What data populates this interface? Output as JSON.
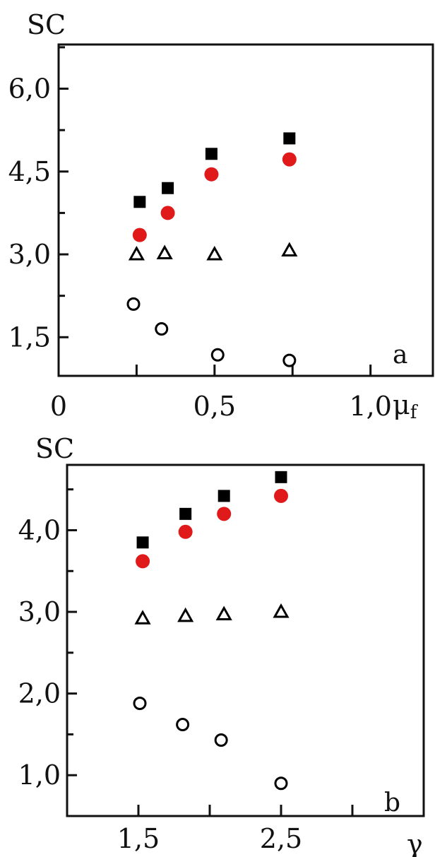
{
  "chart_data": [
    {
      "type": "scatter",
      "panel_label": "a",
      "ylabel": "SC",
      "xlabel": "μf",
      "xlabel_main": "μ",
      "xlabel_sub": "f",
      "xlim": [
        0,
        1.2
      ],
      "ylim": [
        0.8,
        6.8
      ],
      "x_ticks": [
        0,
        0.5,
        1.0
      ],
      "x_tick_labels": [
        "0",
        "0,5",
        "1,0"
      ],
      "y_ticks": [
        1.5,
        3.0,
        4.5,
        6.0
      ],
      "y_tick_labels": [
        "1,5",
        "3,0",
        "4,5",
        "6,0"
      ],
      "grid": false,
      "series": [
        {
          "marker": "filled-square",
          "color": "#000000",
          "x": [
            0.26,
            0.35,
            0.49,
            0.74
          ],
          "y": [
            3.95,
            4.2,
            4.82,
            5.1
          ]
        },
        {
          "marker": "filled-circle",
          "color": "#e01a1a",
          "x": [
            0.26,
            0.35,
            0.49,
            0.74
          ],
          "y": [
            3.35,
            3.75,
            4.45,
            4.72
          ]
        },
        {
          "marker": "open-triangle",
          "color": "#000000",
          "x": [
            0.25,
            0.34,
            0.5,
            0.74
          ],
          "y": [
            3.0,
            3.02,
            3.0,
            3.07
          ]
        },
        {
          "marker": "open-circle",
          "color": "#000000",
          "x": [
            0.24,
            0.33,
            0.51,
            0.74
          ],
          "y": [
            2.1,
            1.65,
            1.18,
            1.08
          ]
        }
      ]
    },
    {
      "type": "scatter",
      "panel_label": "b",
      "ylabel": "SC",
      "xlabel": "γ",
      "xlim": [
        1.0,
        3.5
      ],
      "ylim": [
        0.5,
        4.8
      ],
      "x_ticks": [
        1.5,
        2.5
      ],
      "x_tick_labels": [
        "1,5",
        "2,5"
      ],
      "y_ticks": [
        1.0,
        2.0,
        3.0,
        4.0
      ],
      "y_tick_labels": [
        "1,0",
        "2,0",
        "3,0",
        "4,0"
      ],
      "grid": false,
      "series": [
        {
          "marker": "filled-square",
          "color": "#000000",
          "x": [
            1.53,
            1.83,
            2.1,
            2.5
          ],
          "y": [
            3.85,
            4.2,
            4.42,
            4.65
          ]
        },
        {
          "marker": "filled-circle",
          "color": "#e01a1a",
          "x": [
            1.53,
            1.83,
            2.1,
            2.5
          ],
          "y": [
            3.62,
            3.98,
            4.2,
            4.42
          ]
        },
        {
          "marker": "open-triangle",
          "color": "#000000",
          "x": [
            1.53,
            1.83,
            2.1,
            2.5
          ],
          "y": [
            2.92,
            2.95,
            2.97,
            3.0
          ]
        },
        {
          "marker": "open-circle",
          "color": "#000000",
          "x": [
            1.51,
            1.81,
            2.08,
            2.5
          ],
          "y": [
            1.88,
            1.62,
            1.43,
            0.9
          ]
        }
      ]
    }
  ]
}
